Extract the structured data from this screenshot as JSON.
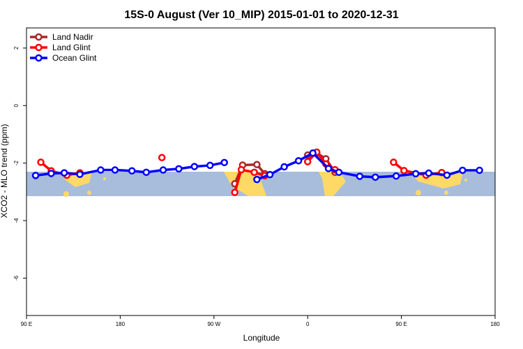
{
  "chart_data": {
    "type": "line",
    "title": "15S-0 August (Ver 10_MIP)   2015-01-01 to 2020-12-31",
    "xlabel": "Longitude",
    "ylabel": "XCO2 - MLO trend (ppm)",
    "xlim": [
      90,
      450
    ],
    "ylim": [
      -7.3,
      2.7
    ],
    "x_ticks": [
      {
        "value": 90,
        "label": "90 E"
      },
      {
        "value": 180,
        "label": "180"
      },
      {
        "value": 270,
        "label": "90 W"
      },
      {
        "value": 360,
        "label": "0"
      },
      {
        "value": 450,
        "label": "90 E"
      },
      {
        "value": 540,
        "label": "180"
      }
    ],
    "x_ticks_visible": [
      90,
      162,
      234,
      306,
      378,
      450
    ],
    "y_ticks": [
      2,
      0,
      -2,
      -4,
      -6
    ],
    "map_strip": {
      "lat_band": "15S-0",
      "y_top": -2.3,
      "y_bottom": -3.15,
      "ocean_color": "#a8bcdc",
      "land_color": "#ffd966"
    },
    "legend_position": "top-left",
    "series": [
      {
        "name": "Land Nadir",
        "color": "#a52a2a",
        "points": [
          [
            250,
            -2.72
          ],
          [
            256,
            -2.07
          ],
          [
            267,
            -2.05
          ],
          [
            273,
            -2.37
          ],
          [
            306,
            -1.72
          ],
          [
            313,
            -1.65
          ],
          [
            320,
            -1.85
          ],
          [
            327,
            -2.32
          ]
        ]
      },
      {
        "name": "Land Glint",
        "color": "#ff0000",
        "points": [
          [
            101,
            -1.97
          ],
          [
            109,
            -2.27
          ],
          [
            121,
            -2.42
          ],
          [
            131,
            -2.34
          ],
          [
            194,
            -1.81
          ],
          [
            250,
            -3.02
          ],
          [
            255,
            -2.23
          ],
          [
            265,
            -2.32
          ],
          [
            273,
            -2.44
          ],
          [
            306,
            -1.95
          ],
          [
            313,
            -1.62
          ],
          [
            320,
            -2.03
          ],
          [
            327,
            -2.23
          ],
          [
            372,
            -1.97
          ],
          [
            380,
            -2.26
          ],
          [
            397,
            -2.42
          ],
          [
            409,
            -2.33
          ]
        ]
      },
      {
        "name": "Ocean Glint",
        "color": "#0000ff",
        "points": [
          [
            97,
            -2.43
          ],
          [
            109,
            -2.36
          ],
          [
            119,
            -2.34
          ],
          [
            131,
            -2.39
          ],
          [
            147,
            -2.24
          ],
          [
            158,
            -2.24
          ],
          [
            171,
            -2.27
          ],
          [
            182,
            -2.32
          ],
          [
            195,
            -2.24
          ],
          [
            207,
            -2.2
          ],
          [
            219,
            -2.12
          ],
          [
            231,
            -2.08
          ],
          [
            242,
            -1.98
          ],
          [
            267,
            -2.57
          ],
          [
            277,
            -2.4
          ],
          [
            288,
            -2.13
          ],
          [
            299,
            -1.92
          ],
          [
            310,
            -1.65
          ],
          [
            322,
            -2.19
          ],
          [
            330,
            -2.32
          ],
          [
            346,
            -2.46
          ],
          [
            358,
            -2.49
          ],
          [
            374,
            -2.45
          ],
          [
            389,
            -2.37
          ],
          [
            399,
            -2.35
          ],
          [
            413,
            -2.42
          ],
          [
            425,
            -2.25
          ],
          [
            438,
            -2.25
          ]
        ]
      }
    ]
  }
}
